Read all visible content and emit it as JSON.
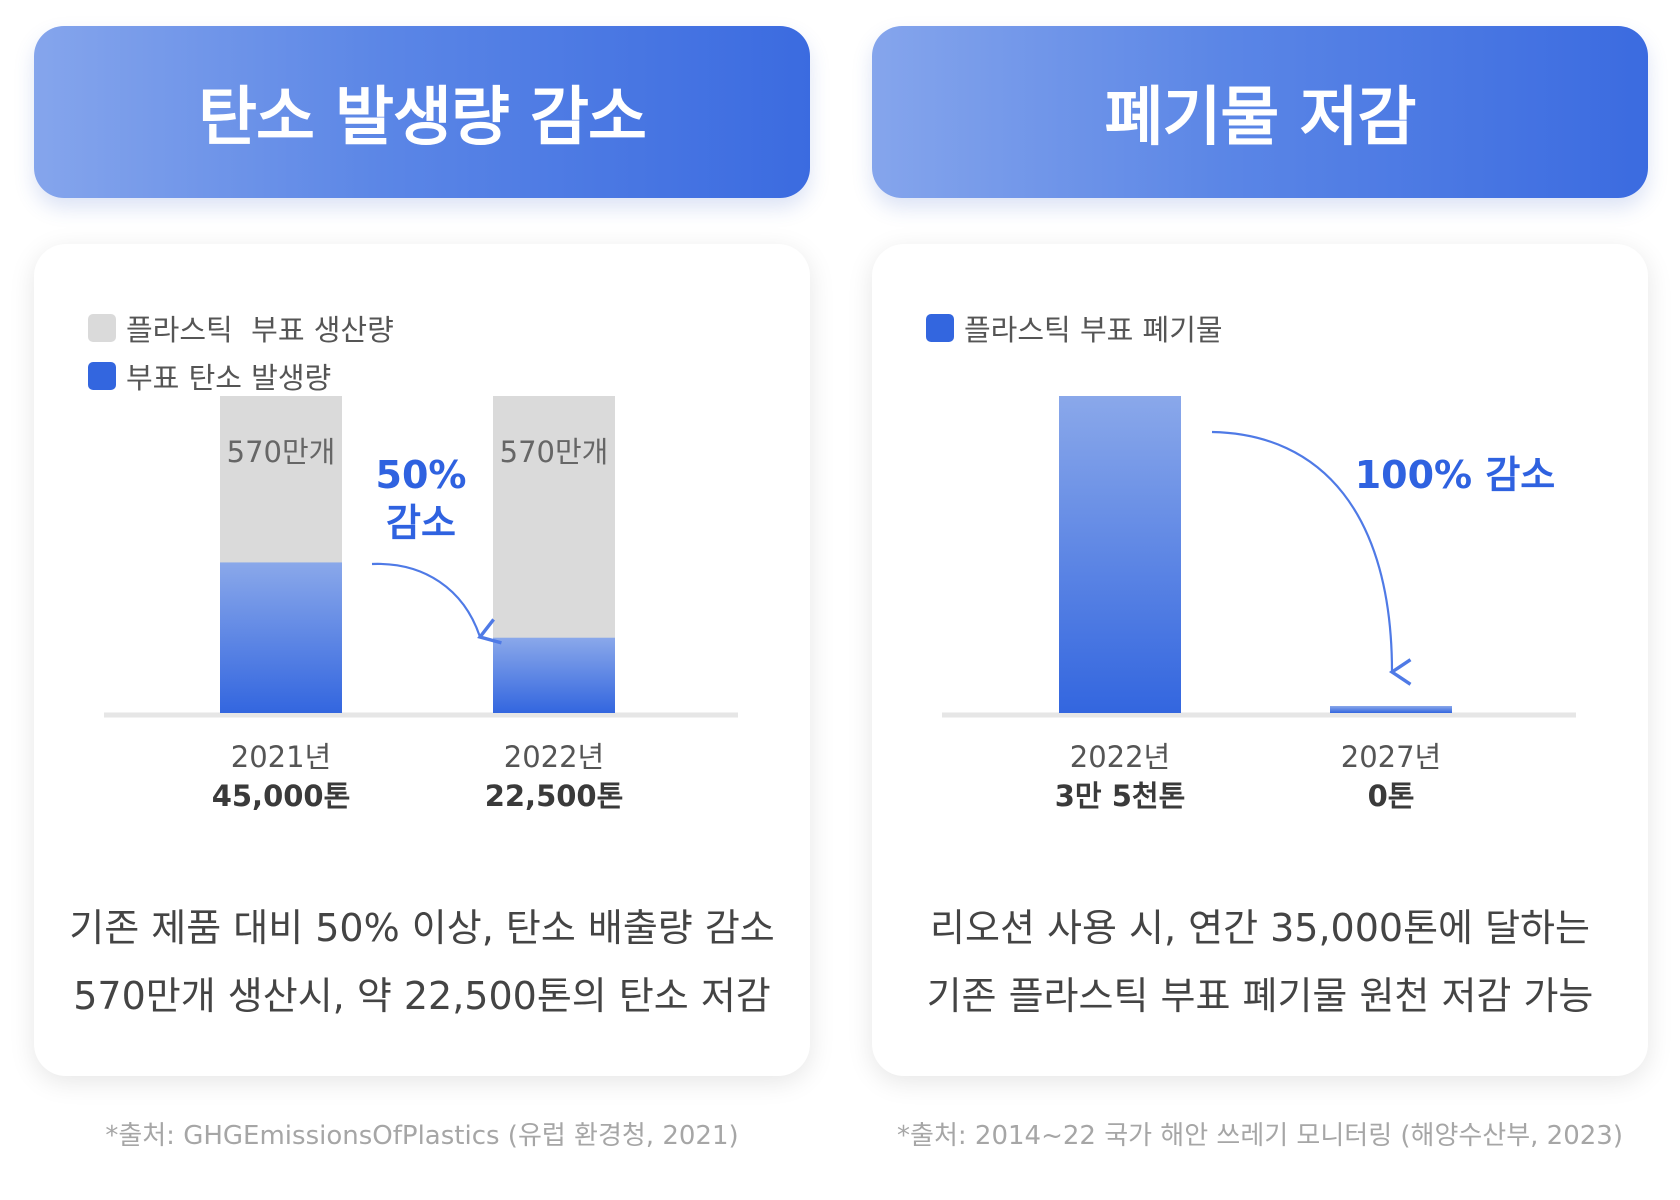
{
  "colors": {
    "header_start": "#85a5ec",
    "header_end": "#3b6be0",
    "gray_bar": "#dadada",
    "blue_bar_top": "#8aa8ea",
    "blue_bar_bottom": "#3366df",
    "accent_text": "#2f62e0",
    "baseline": "#e6e6e6"
  },
  "left": {
    "header": "탄소 발생량 감소",
    "legend": [
      {
        "label": "플라스틱  부표 생산량",
        "color": "#dadada"
      },
      {
        "label": "부표 탄소 발생량",
        "color": "#3366df"
      }
    ],
    "bar_top_labels": [
      "570만개",
      "570만개"
    ],
    "years": [
      "2021년",
      "2022년"
    ],
    "values_text": [
      "45,000톤",
      "22,500톤"
    ],
    "annotation": [
      "50%",
      "감소"
    ],
    "description": [
      "기존 제품 대비 50% 이상, 탄소 배출량 감소",
      "570만개 생산시, 약 22,500톤의 탄소 저감"
    ],
    "source": "*출처: GHGEmissionsOfPlastics (유럽 환경청, 2021)"
  },
  "right": {
    "header": "폐기물 저감",
    "legend": [
      {
        "label": "플라스틱 부표 폐기물",
        "color": "#3366df"
      }
    ],
    "years": [
      "2022년",
      "2027년"
    ],
    "values_text": [
      "3만 5천톤",
      "0톤"
    ],
    "annotation": "100% 감소",
    "description": [
      "리오션 사용 시, 연간 35,000톤에 달하는",
      "기존 플라스틱 부표 폐기물 원천 저감 가능"
    ],
    "source": "*출처: 2014~22 국가 해안 쓰레기 모니터링  (해양수산부, 2023)"
  },
  "chart_data": [
    {
      "type": "bar",
      "stacked_overlay": true,
      "categories": [
        "2021년",
        "2022년"
      ],
      "series": [
        {
          "name": "플라스틱  부표 생산량",
          "values": [
            5700000,
            5700000
          ]
        },
        {
          "name": "부표 탄소 발생량",
          "values": [
            45000,
            22500
          ]
        }
      ],
      "notes": "Gray bars = production (570만개 each, full height); blue bars = carbon emissions in tons."
    },
    {
      "type": "bar",
      "categories": [
        "2022년",
        "2027년"
      ],
      "series": [
        {
          "name": "플라스틱 부표 폐기물",
          "values": [
            35000,
            0
          ]
        }
      ]
    }
  ]
}
